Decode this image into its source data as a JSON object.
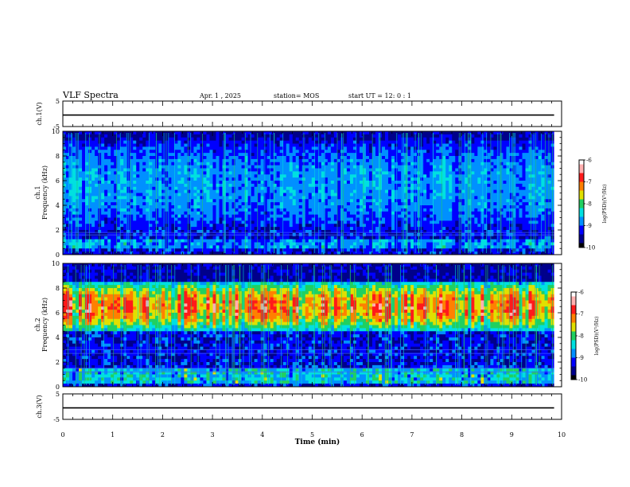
{
  "header": {
    "title": "VLF Spectra",
    "date": "Apr. 1 , 2025",
    "station": "station= MOS",
    "start": "start UT = 12: 0 : 1"
  },
  "chart_data": {
    "type": "heatmap",
    "xlabel": "Time (min)",
    "xlim": [
      0,
      10
    ],
    "x_ticks": [
      0,
      1,
      2,
      3,
      4,
      5,
      6,
      7,
      8,
      9,
      10
    ],
    "data_end_min": 9.85,
    "panels": [
      {
        "id": "ch1-waveform",
        "kind": "waveform",
        "ylabel": "ch.1(V)",
        "ylim": [
          -5,
          5
        ],
        "y_ticks": [
          5,
          -5
        ],
        "level": -0.5
      },
      {
        "id": "ch1-spectrogram",
        "kind": "spectrogram",
        "ylabel_line1": "ch.1",
        "ylabel_line2": "Frequency (kHz)",
        "ylim": [
          0,
          10
        ],
        "y_ticks": [
          0,
          2,
          4,
          6,
          8,
          10
        ],
        "activity": {
          "band_kHz": [
            2.0,
            9.3
          ],
          "band_intensity": 0.32,
          "low_band_kHz": [
            0.4,
            1.2
          ],
          "low_band_intensity": 0.45,
          "lines_kHz": [
            1.6,
            1.8
          ]
        },
        "colorbar": {
          "label": "log(PSD)(V²/Hz)",
          "ticks": [
            -6,
            -7,
            -8,
            -9,
            -10
          ],
          "range": [
            -10,
            -6
          ]
        }
      },
      {
        "id": "ch2-spectrogram",
        "kind": "spectrogram",
        "ylabel_line1": "ch.2",
        "ylabel_line2": "Frequency (kHz)",
        "ylim": [
          0,
          10
        ],
        "y_ticks": [
          0,
          2,
          4,
          6,
          8,
          10
        ],
        "activity": {
          "band_kHz": [
            4.5,
            8.5
          ],
          "band_intensity": 0.82,
          "low_band_kHz": [
            0.3,
            1.5
          ],
          "low_band_intensity": 0.55,
          "lines_kHz": [
            1.2,
            1.5,
            2.7,
            3.0
          ]
        },
        "colorbar": {
          "label": "log(PSD)(V²/Hz)",
          "ticks": [
            -6,
            -7,
            -8,
            -9,
            -10
          ],
          "range": [
            -10,
            -6
          ]
        }
      },
      {
        "id": "ch3-waveform",
        "kind": "waveform",
        "ylabel": "ch.3(V)",
        "ylim": [
          -5,
          5
        ],
        "y_ticks": [
          5,
          -5
        ],
        "level": -0.5
      }
    ],
    "colormap": [
      "#000000",
      "#00008b",
      "#0000ff",
      "#0090ff",
      "#00e0e0",
      "#20d060",
      "#e0e000",
      "#ff8000",
      "#ff1a1a",
      "#ffb0b0",
      "#ffffff"
    ]
  }
}
